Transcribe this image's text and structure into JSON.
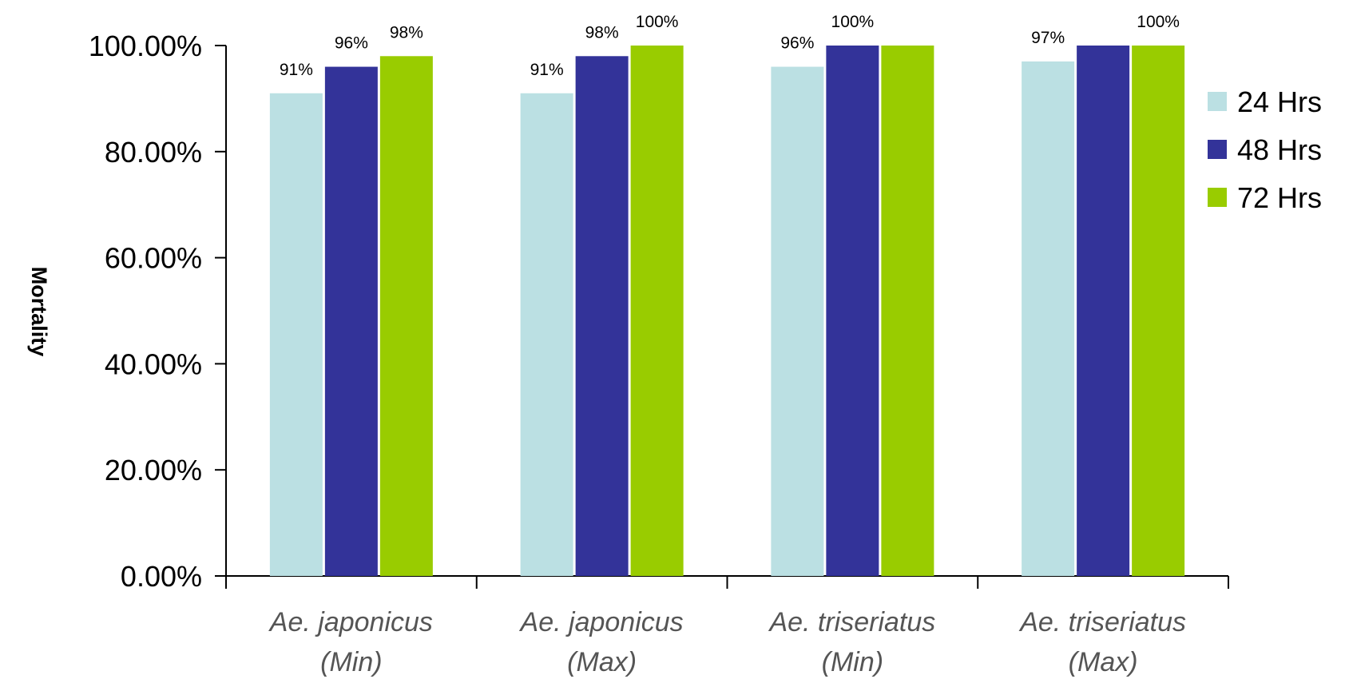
{
  "chart_data": {
    "type": "bar",
    "title": "",
    "xlabel": "",
    "ylabel": "Mortality",
    "ylim": [
      0,
      100
    ],
    "y_ticks": [
      "0.00%",
      "20.00%",
      "40.00%",
      "60.00%",
      "80.00%",
      "100.00%"
    ],
    "grid": false,
    "legend_position": "right",
    "categories": [
      [
        "Ae. japonicus",
        "(Min)"
      ],
      [
        "Ae. japonicus",
        "(Max)"
      ],
      [
        "Ae. triseriatus",
        "(Min)"
      ],
      [
        "Ae. triseriatus",
        "(Max)"
      ]
    ],
    "series": [
      {
        "name": "24 Hrs",
        "color": "#bbe0e3",
        "values": [
          91,
          91,
          96,
          97
        ],
        "labels": [
          "91%",
          "91%",
          "96%",
          "97%"
        ]
      },
      {
        "name": "48 Hrs",
        "color": "#333399",
        "values": [
          96,
          98,
          100,
          100
        ],
        "labels": [
          "96%",
          "98%",
          "100%",
          ""
        ]
      },
      {
        "name": "72 Hrs",
        "color": "#99cc00",
        "values": [
          98,
          100,
          100,
          100
        ],
        "labels": [
          "98%",
          "100%",
          "",
          "100%"
        ]
      }
    ]
  }
}
